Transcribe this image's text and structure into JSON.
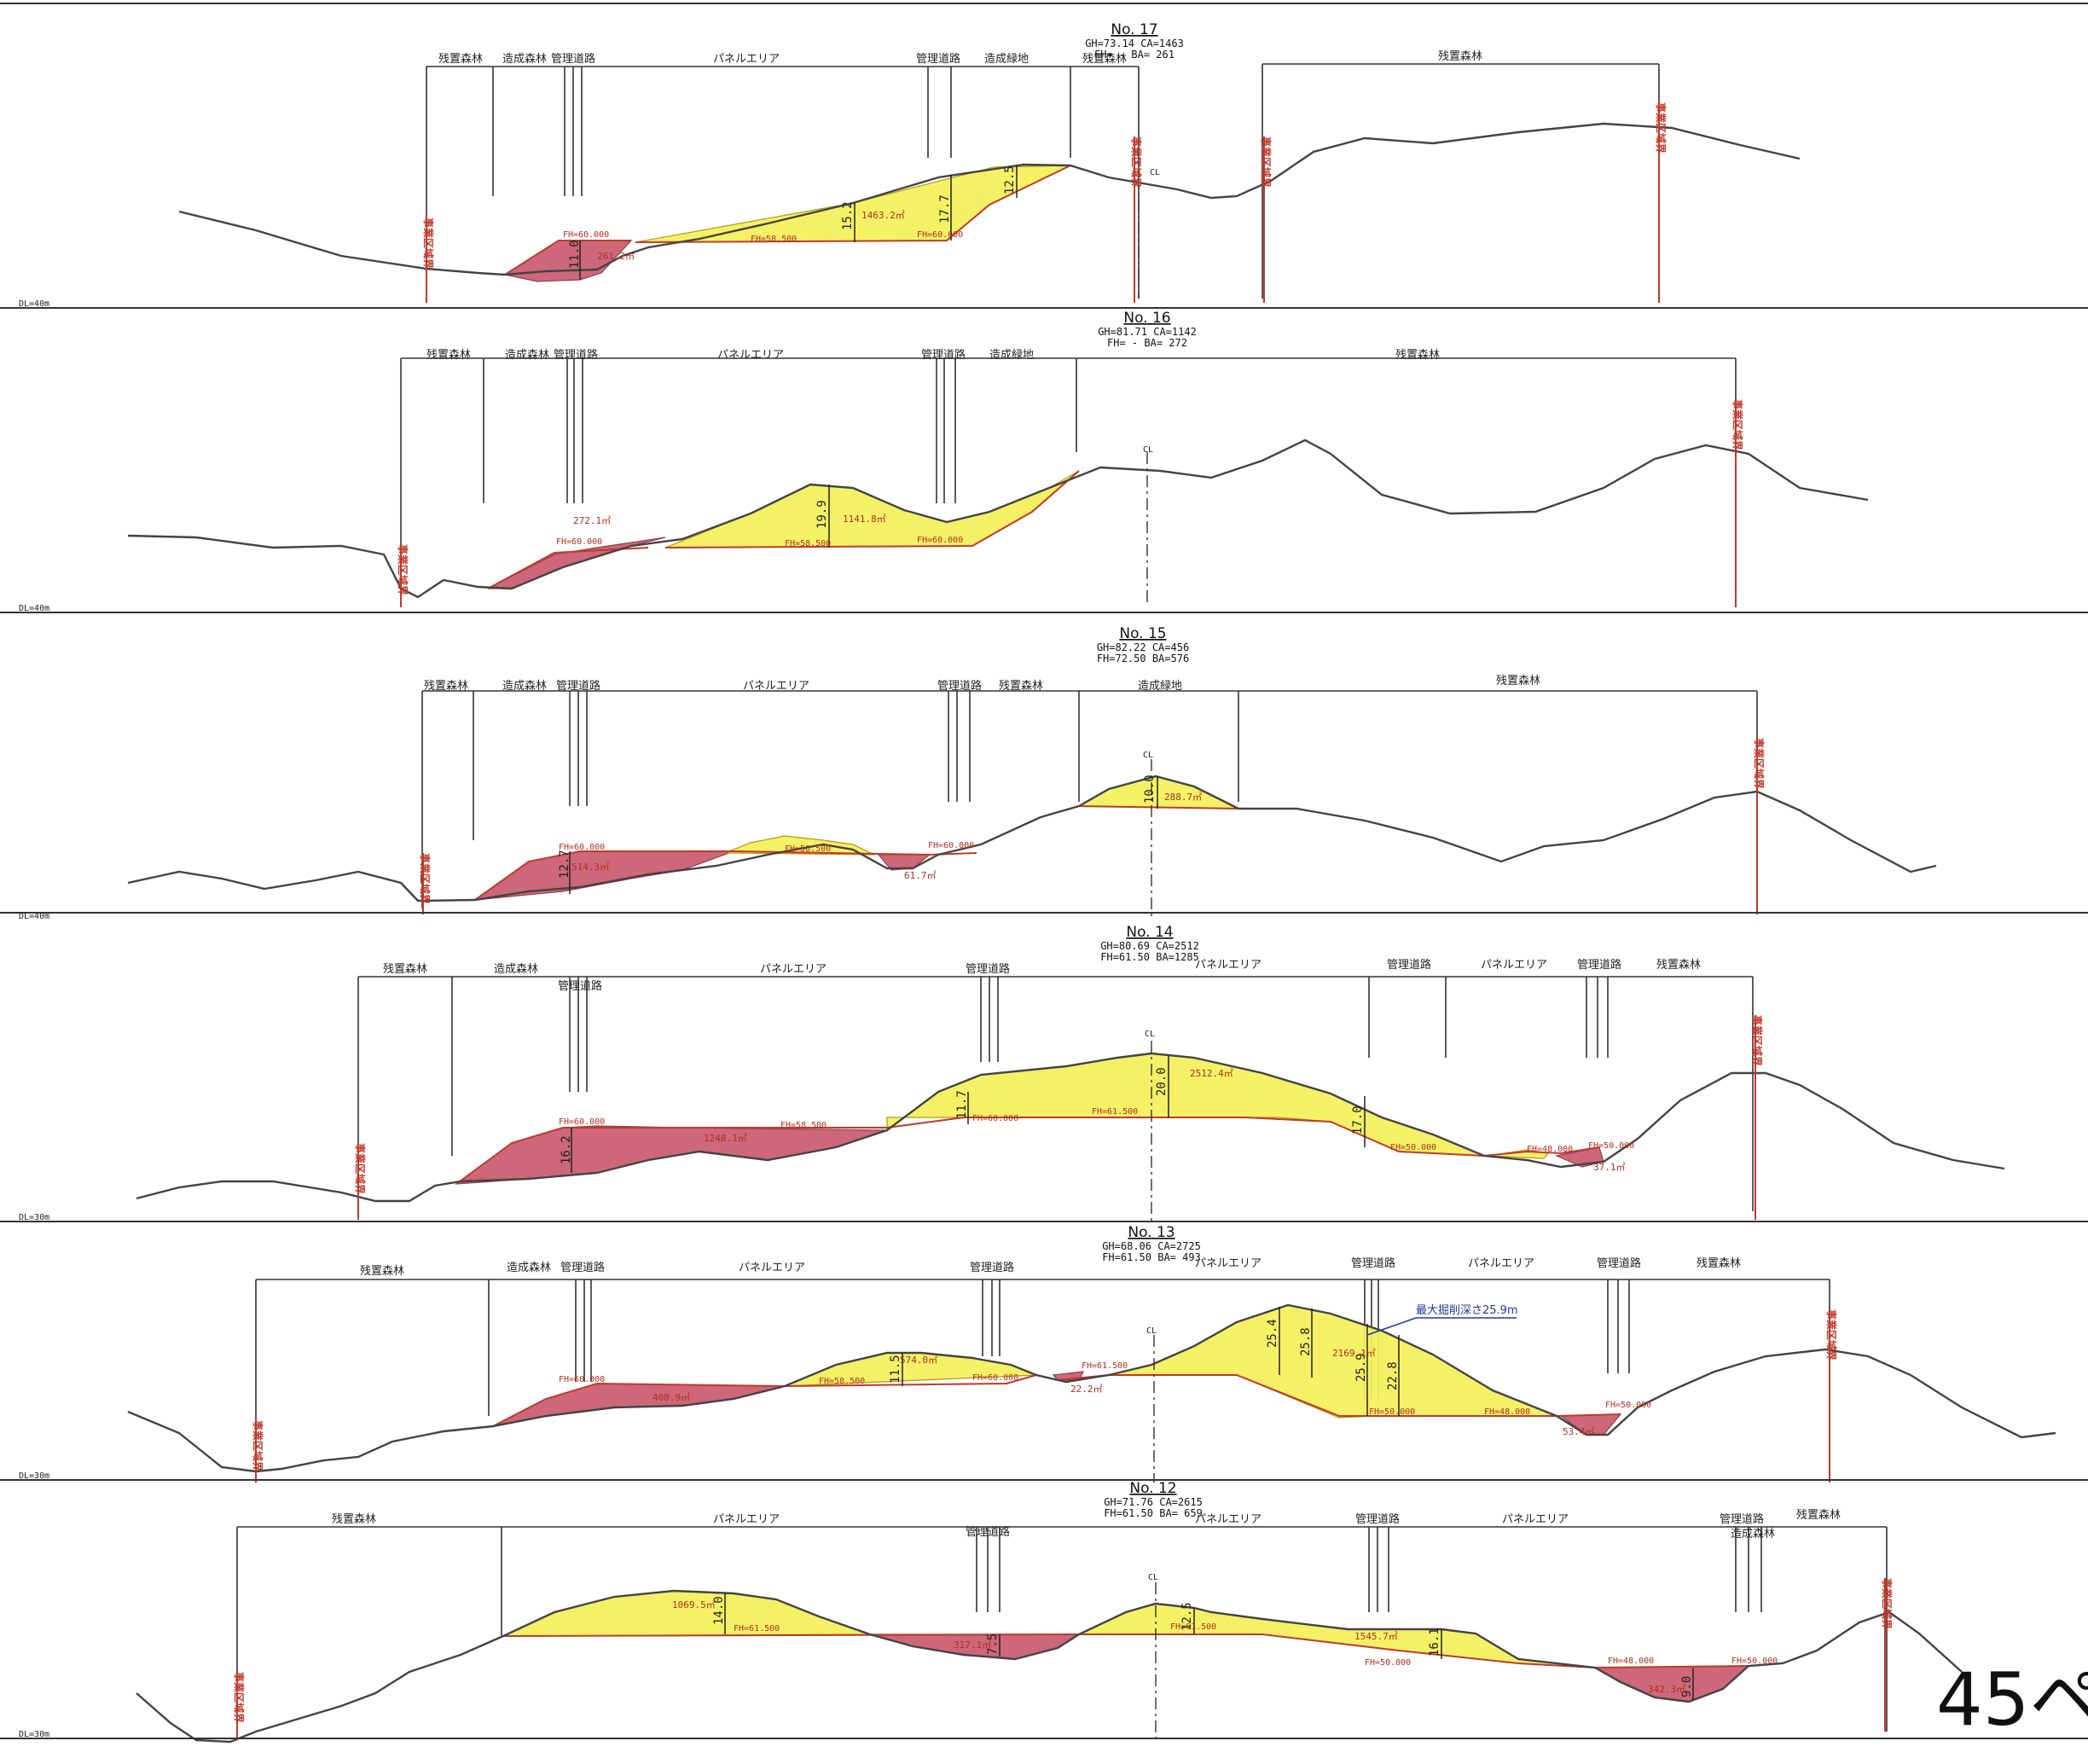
{
  "page_label": "45ペ",
  "sections": [
    {
      "no": "No. 17",
      "gh_ca": "GH=73.14 CA=1463",
      "fh_ba": "FH= -   BA= 261",
      "dl": "DL=40m",
      "zones_a": [
        "残置森林",
        "造成森林",
        "管理道路",
        "パネルエリア",
        "管理道路",
        "造成緑地",
        "残置森林"
      ],
      "zones_b": [
        "残置森林"
      ],
      "boundary": "事業区域界",
      "cl": "CL",
      "dims": [
        "11.0",
        "15.2",
        "17.7",
        "12.5"
      ],
      "areas": [
        "261.2㎡",
        "1463.2㎡"
      ],
      "fh": [
        "FH=60.000",
        "FH=58.500",
        "FH=60.000"
      ]
    },
    {
      "no": "No. 16",
      "gh_ca": "GH=81.71 CA=1142",
      "fh_ba": "FH= -   BA= 272",
      "dl": "DL=40m",
      "zones_a": [
        "残置森林",
        "造成森林",
        "管理道路",
        "パネルエリア",
        "管理道路",
        "造成緑地"
      ],
      "zones_b": [
        "残置森林"
      ],
      "boundary": "事業区域界",
      "cl": "CL",
      "dims": [
        "19.9"
      ],
      "areas": [
        "272.1㎡",
        "1141.8㎡"
      ],
      "fh": [
        "FH=60.000",
        "FH=58.500",
        "FH=60.000"
      ]
    },
    {
      "no": "No. 15",
      "gh_ca": "GH=82.22 CA=456",
      "fh_ba": "FH=72.50 BA=576",
      "dl": "DL=40m",
      "zones_a": [
        "残置森林",
        "造成森林",
        "管理道路",
        "パネルエリア",
        "管理道路",
        "残置森林",
        "造成緑地"
      ],
      "zones_b": [
        "残置森林"
      ],
      "boundary": "事業区域界",
      "cl": "CL",
      "dims": [
        "12.7",
        "10.0"
      ],
      "areas": [
        "514.3㎡",
        "288.7㎡",
        "61.7㎡"
      ],
      "fh": [
        "FH=60.000",
        "FH=58.500",
        "FH=60.000"
      ]
    },
    {
      "no": "No. 14",
      "gh_ca": "GH=80.69 CA=2512",
      "fh_ba": "FH=61.50 BA=1285",
      "dl": "DL=30m",
      "zones_a": [
        "残置森林",
        "造成森林",
        "管理道路",
        "パネルエリア",
        "管理道路",
        "パネルエリア",
        "管理道路",
        "パネルエリア",
        "管理道路",
        "残置森林"
      ],
      "zones_b": [],
      "boundary": "事業区域界",
      "cl": "CL",
      "dims": [
        "16.2",
        "11.7",
        "20.0",
        "17.0"
      ],
      "areas": [
        "1248.1㎡",
        "2512.4㎡",
        "37.1㎡"
      ],
      "fh": [
        "FH=60.000",
        "FH=58.500",
        "FH=60.000",
        "FH=61.500",
        "FH=50.000",
        "FH=48.000",
        "FH=50.000"
      ]
    },
    {
      "no": "No. 13",
      "gh_ca": "GH=68.06 CA=2725",
      "fh_ba": "FH=61.50 BA= 493",
      "dl": "DL=30m",
      "zones_a": [
        "残置森林",
        "造成森林",
        "管理道路",
        "パネルエリア",
        "管理道路",
        "パネルエリア",
        "管理道路",
        "パネルエリア",
        "管理道路",
        "残置森林"
      ],
      "zones_b": [],
      "boundary": "事業区域界",
      "cl": "CL",
      "dims": [
        "11.5",
        "25.4",
        "25.8",
        "25.9",
        "22.8"
      ],
      "areas": [
        "408.9㎡",
        "574.0㎡",
        "22.2㎡",
        "2169.1㎡",
        "53.4㎡"
      ],
      "fh": [
        "FH=60.000",
        "FH=58.500",
        "FH=60.000",
        "FH=61.500",
        "FH=50.000",
        "FH=48.000",
        "FH=50.000"
      ],
      "note": "最大掘削深さ25.9m"
    },
    {
      "no": "No. 12",
      "gh_ca": "GH=71.76 CA=2615",
      "fh_ba": "FH=61.50 BA= 659",
      "dl": "DL=30m",
      "zones_a": [
        "残置森林",
        "パネルエリア",
        "管理道路",
        "パネルエリア",
        "管理道路",
        "パネルエリア",
        "管理道路",
        "造成森林",
        "残置森林"
      ],
      "zones_b": [],
      "boundary": "事業区域界",
      "cl": "CL",
      "dims": [
        "14.0",
        "7.5",
        "12.5",
        "16.1",
        "9.0"
      ],
      "areas": [
        "1069.5㎡",
        "317.1㎡",
        "1545.7㎡",
        "342.3㎡"
      ],
      "fh": [
        "FH=61.500",
        "FH=61.500",
        "FH=50.000",
        "FH=48.000",
        "FH=50.000"
      ]
    }
  ]
}
